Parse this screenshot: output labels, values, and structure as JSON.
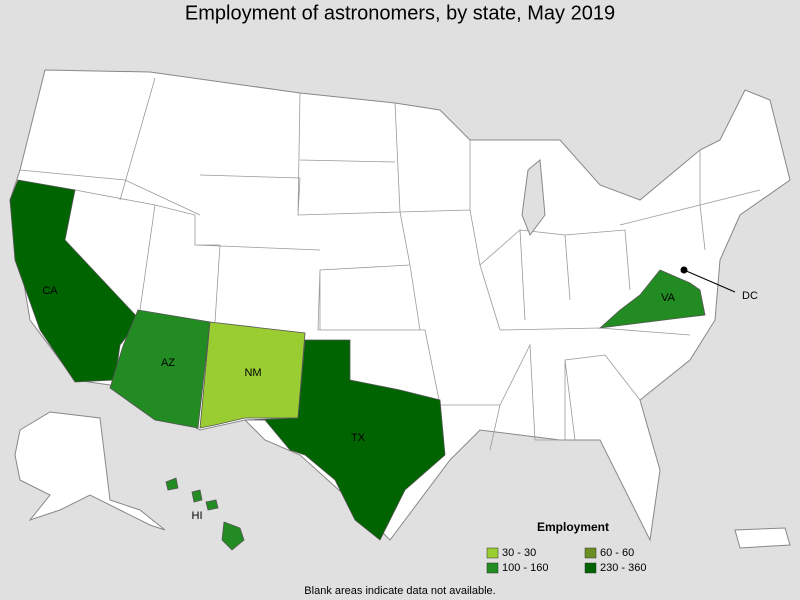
{
  "title": "Employment of astronomers, by state, May 2019",
  "states": [
    {
      "label": "CA",
      "color": "#006400"
    },
    {
      "label": "AZ",
      "color": "#228b22"
    },
    {
      "label": "NM",
      "color": "#9acd32"
    },
    {
      "label": "TX",
      "color": "#006400"
    },
    {
      "label": "VA",
      "color": "#228b22"
    },
    {
      "label": "HI",
      "color": "#228b22"
    },
    {
      "label": "DC",
      "color": "#000000"
    }
  ],
  "legend": {
    "title": "Employment",
    "items": [
      {
        "label": "30 - 30",
        "color": "#9acd32"
      },
      {
        "label": "60 - 60",
        "color": "#6b8e23"
      },
      {
        "label": "100 - 160",
        "color": "#228b22"
      },
      {
        "label": "230 - 360",
        "color": "#006400"
      }
    ]
  },
  "footnote": "Blank areas indicate data not available."
}
